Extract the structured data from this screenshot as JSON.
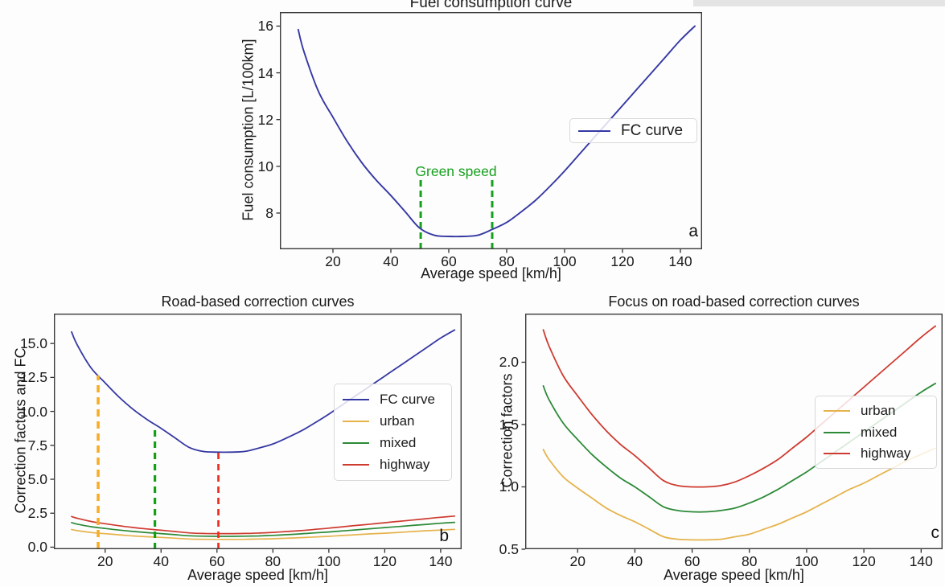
{
  "figure": {
    "background": "#fdfdfd",
    "top_right_strip_color": "#e4e4e4"
  },
  "colors": {
    "fc": "#3538a3",
    "urban": "#e5b34c",
    "mixed": "#2c8a38",
    "highway": "#ce3b30",
    "greenspeed": "#16a01e",
    "dash_urban": "#f6ae28",
    "dash_mixed": "#14a014",
    "dash_highway": "#ee2d1d",
    "spine": "#3a3a3a",
    "tick": "#2f2f2f",
    "legend_border": "#d9d9d9"
  },
  "chart_data": [
    {
      "id": "a",
      "type": "line",
      "title": "Fuel consumption curve",
      "xlabel": "Average speed [km/h]",
      "ylabel": "Fuel consumption [L/100km]",
      "panel_letter": "a",
      "xlim": [
        1.67,
        147.5
      ],
      "ylim": [
        6.45,
        16.6
      ],
      "grid": false,
      "xticks": [
        "20",
        "40",
        "60",
        "80",
        "100",
        "120",
        "140"
      ],
      "yticks": [
        "8",
        "10",
        "12",
        "14",
        "16"
      ],
      "x": [
        8,
        10,
        15,
        20,
        25,
        30,
        35,
        40,
        45,
        50,
        55,
        60,
        65,
        70,
        75,
        80,
        85,
        90,
        95,
        100,
        105,
        110,
        115,
        120,
        125,
        130,
        135,
        140,
        145
      ],
      "series": [
        {
          "name": "FC curve",
          "color": "fc",
          "lw": 1.9,
          "values": [
            15.85,
            14.9,
            13.2,
            12.1,
            11.05,
            10.15,
            9.4,
            8.75,
            8.05,
            7.35,
            7.05,
            7.0,
            7.0,
            7.05,
            7.3,
            7.6,
            8.05,
            8.55,
            9.15,
            9.8,
            10.5,
            11.2,
            11.9,
            12.6,
            13.3,
            14.0,
            14.7,
            15.4,
            16.0
          ]
        }
      ],
      "legend": {
        "position": "center right",
        "entries": [
          {
            "label": "FC curve",
            "color": "fc"
          }
        ]
      },
      "annotation": {
        "text": "Green speed",
        "color": "greenspeed"
      },
      "vlines": [
        {
          "x": 50.3,
          "y_top": 9.5,
          "color": "greenspeed",
          "lw": 3,
          "dash": "8 5"
        },
        {
          "x": 75.0,
          "y_top": 9.5,
          "color": "greenspeed",
          "lw": 3,
          "dash": "8 5"
        }
      ],
      "vlines_on_top": false
    },
    {
      "id": "b",
      "type": "line",
      "title": "Road-based correction curves",
      "xlabel": "Average speed [km/h]",
      "ylabel": "Correction factors and FC",
      "panel_letter": "b",
      "xlim": [
        1.67,
        147.5
      ],
      "ylim": [
        -0.15,
        17.2
      ],
      "grid": false,
      "xticks": [
        "20",
        "40",
        "60",
        "80",
        "100",
        "120",
        "140"
      ],
      "yticks": [
        "0.0",
        "2.5",
        "5.0",
        "7.5",
        "10.0",
        "12.5",
        "15.0"
      ],
      "x": [
        8,
        10,
        15,
        20,
        25,
        30,
        35,
        40,
        45,
        50,
        55,
        60,
        65,
        70,
        75,
        80,
        85,
        90,
        95,
        100,
        105,
        110,
        115,
        120,
        125,
        130,
        135,
        140,
        145
      ],
      "series": [
        {
          "name": "FC curve",
          "color": "fc",
          "lw": 1.8,
          "values": [
            15.85,
            14.9,
            13.2,
            12.1,
            11.05,
            10.15,
            9.4,
            8.75,
            8.05,
            7.35,
            7.05,
            7.0,
            7.0,
            7.05,
            7.3,
            7.6,
            8.05,
            8.55,
            9.15,
            9.8,
            10.5,
            11.2,
            11.9,
            12.6,
            13.3,
            14.0,
            14.7,
            15.4,
            16.0
          ]
        },
        {
          "name": "urban",
          "color": "urban",
          "lw": 1.7,
          "values": [
            1.3,
            1.22,
            1.08,
            0.99,
            0.91,
            0.83,
            0.77,
            0.72,
            0.66,
            0.6,
            0.58,
            0.575,
            0.575,
            0.58,
            0.6,
            0.62,
            0.66,
            0.7,
            0.75,
            0.8,
            0.86,
            0.92,
            0.98,
            1.03,
            1.09,
            1.15,
            1.21,
            1.26,
            1.31
          ]
        },
        {
          "name": "mixed",
          "color": "mixed",
          "lw": 1.7,
          "values": [
            1.81,
            1.7,
            1.51,
            1.38,
            1.26,
            1.16,
            1.07,
            1.0,
            0.92,
            0.84,
            0.81,
            0.8,
            0.8,
            0.81,
            0.83,
            0.87,
            0.92,
            0.98,
            1.05,
            1.12,
            1.2,
            1.28,
            1.36,
            1.44,
            1.52,
            1.6,
            1.68,
            1.76,
            1.83
          ]
        },
        {
          "name": "highway",
          "color": "highway",
          "lw": 1.7,
          "values": [
            2.26,
            2.13,
            1.89,
            1.73,
            1.58,
            1.45,
            1.34,
            1.25,
            1.15,
            1.05,
            1.01,
            1.0,
            1.0,
            1.01,
            1.04,
            1.09,
            1.15,
            1.22,
            1.31,
            1.4,
            1.5,
            1.6,
            1.7,
            1.8,
            1.9,
            2.0,
            2.1,
            2.2,
            2.29
          ]
        }
      ],
      "legend": {
        "position": "center right",
        "entries": [
          {
            "label": "FC curve",
            "color": "fc"
          },
          {
            "label": "urban",
            "color": "urban"
          },
          {
            "label": "mixed",
            "color": "mixed"
          },
          {
            "label": "highway",
            "color": "highway"
          }
        ]
      },
      "vlines": [
        {
          "x": 17.5,
          "y_top": 12.65,
          "color": "dash_urban",
          "lw": 3.6,
          "dash": "9 6"
        },
        {
          "x": 37.8,
          "y_top": 8.9,
          "color": "dash_mixed",
          "lw": 3.2,
          "dash": "8 6"
        },
        {
          "x": 60.5,
          "y_top": 7.0,
          "color": "dash_highway",
          "lw": 2.7,
          "dash": "8 6"
        }
      ],
      "vlines_on_top": true
    },
    {
      "id": "c",
      "type": "line",
      "title": "Focus on road-based correction curves",
      "xlabel": "Average speed [km/h]",
      "ylabel": "Correction factors",
      "panel_letter": "c",
      "xlim": [
        1.67,
        147.5
      ],
      "ylim": [
        0.5,
        2.39
      ],
      "grid": false,
      "xticks": [
        "20",
        "40",
        "60",
        "80",
        "100",
        "120",
        "140"
      ],
      "yticks": [
        "0.5",
        "1.0",
        "1.5",
        "2.0"
      ],
      "x": [
        8,
        10,
        15,
        20,
        25,
        30,
        35,
        40,
        45,
        50,
        55,
        60,
        65,
        70,
        75,
        80,
        85,
        90,
        95,
        100,
        105,
        110,
        115,
        120,
        125,
        130,
        135,
        140,
        145
      ],
      "series": [
        {
          "name": "urban",
          "color": "urban",
          "lw": 1.8,
          "values": [
            1.3,
            1.22,
            1.08,
            0.99,
            0.91,
            0.83,
            0.77,
            0.72,
            0.66,
            0.6,
            0.58,
            0.575,
            0.575,
            0.58,
            0.6,
            0.62,
            0.66,
            0.7,
            0.75,
            0.8,
            0.86,
            0.92,
            0.98,
            1.03,
            1.09,
            1.15,
            1.21,
            1.26,
            1.31
          ]
        },
        {
          "name": "mixed",
          "color": "mixed",
          "lw": 1.8,
          "values": [
            1.81,
            1.7,
            1.51,
            1.38,
            1.26,
            1.16,
            1.07,
            1.0,
            0.92,
            0.84,
            0.81,
            0.8,
            0.8,
            0.81,
            0.83,
            0.87,
            0.92,
            0.98,
            1.05,
            1.12,
            1.2,
            1.28,
            1.36,
            1.44,
            1.52,
            1.6,
            1.68,
            1.76,
            1.83
          ]
        },
        {
          "name": "highway",
          "color": "highway",
          "lw": 1.8,
          "values": [
            2.26,
            2.13,
            1.89,
            1.73,
            1.58,
            1.45,
            1.34,
            1.25,
            1.15,
            1.05,
            1.01,
            1.0,
            1.0,
            1.01,
            1.04,
            1.09,
            1.15,
            1.22,
            1.31,
            1.4,
            1.5,
            1.6,
            1.7,
            1.8,
            1.9,
            2.0,
            2.1,
            2.2,
            2.29
          ]
        }
      ],
      "legend": {
        "position": "center right",
        "entries": [
          {
            "label": "urban",
            "color": "urban"
          },
          {
            "label": "mixed",
            "color": "mixed"
          },
          {
            "label": "highway",
            "color": "highway"
          }
        ]
      },
      "vlines": [],
      "vlines_on_top": false
    }
  ]
}
